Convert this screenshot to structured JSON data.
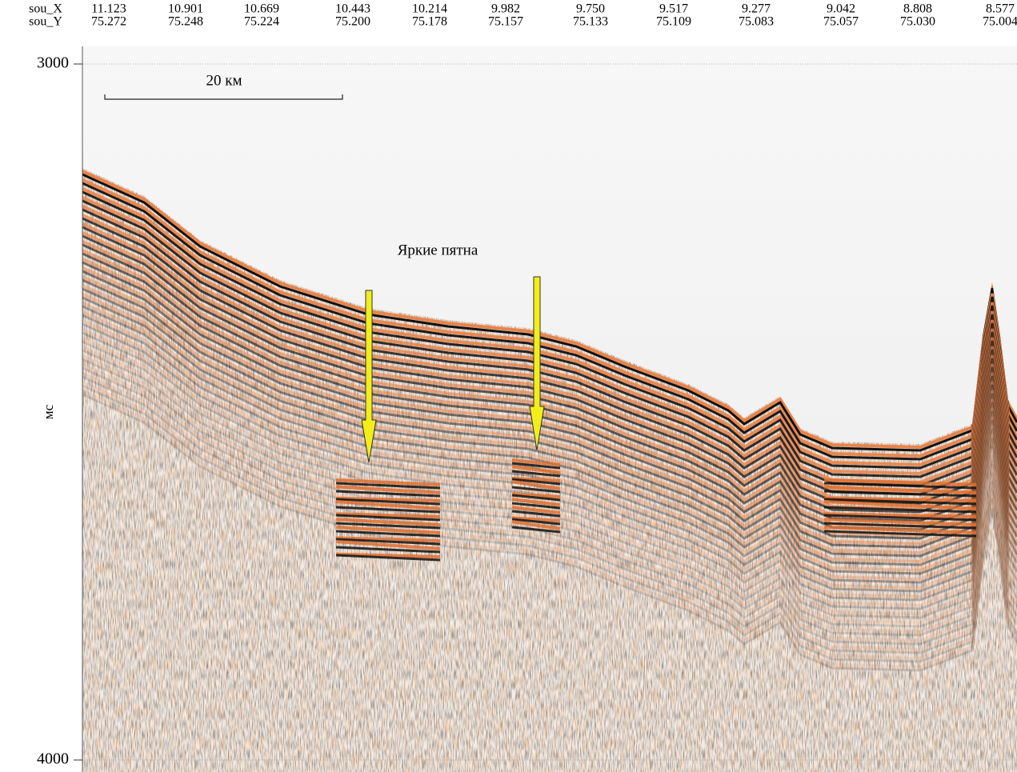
{
  "header": {
    "rows": [
      {
        "label": "sou_X",
        "values": [
          "11.123",
          "10.901",
          "10.669",
          "10.443",
          "10.214",
          "9.982",
          "9.750",
          "9.517",
          "9.277",
          "9.042",
          "8.808",
          "8.577"
        ]
      },
      {
        "label": "sou_Y",
        "values": [
          "75.272",
          "75.248",
          "75.224",
          "75.200",
          "75.178",
          "75.157",
          "75.133",
          "75.109",
          "75.083",
          "75.057",
          "75.030",
          "75.004"
        ]
      }
    ]
  },
  "y_axis": {
    "label": "мс",
    "ticks": [
      3000,
      4000
    ]
  },
  "scale_bar": "20 км",
  "annotation": "Яркие пятна"
}
